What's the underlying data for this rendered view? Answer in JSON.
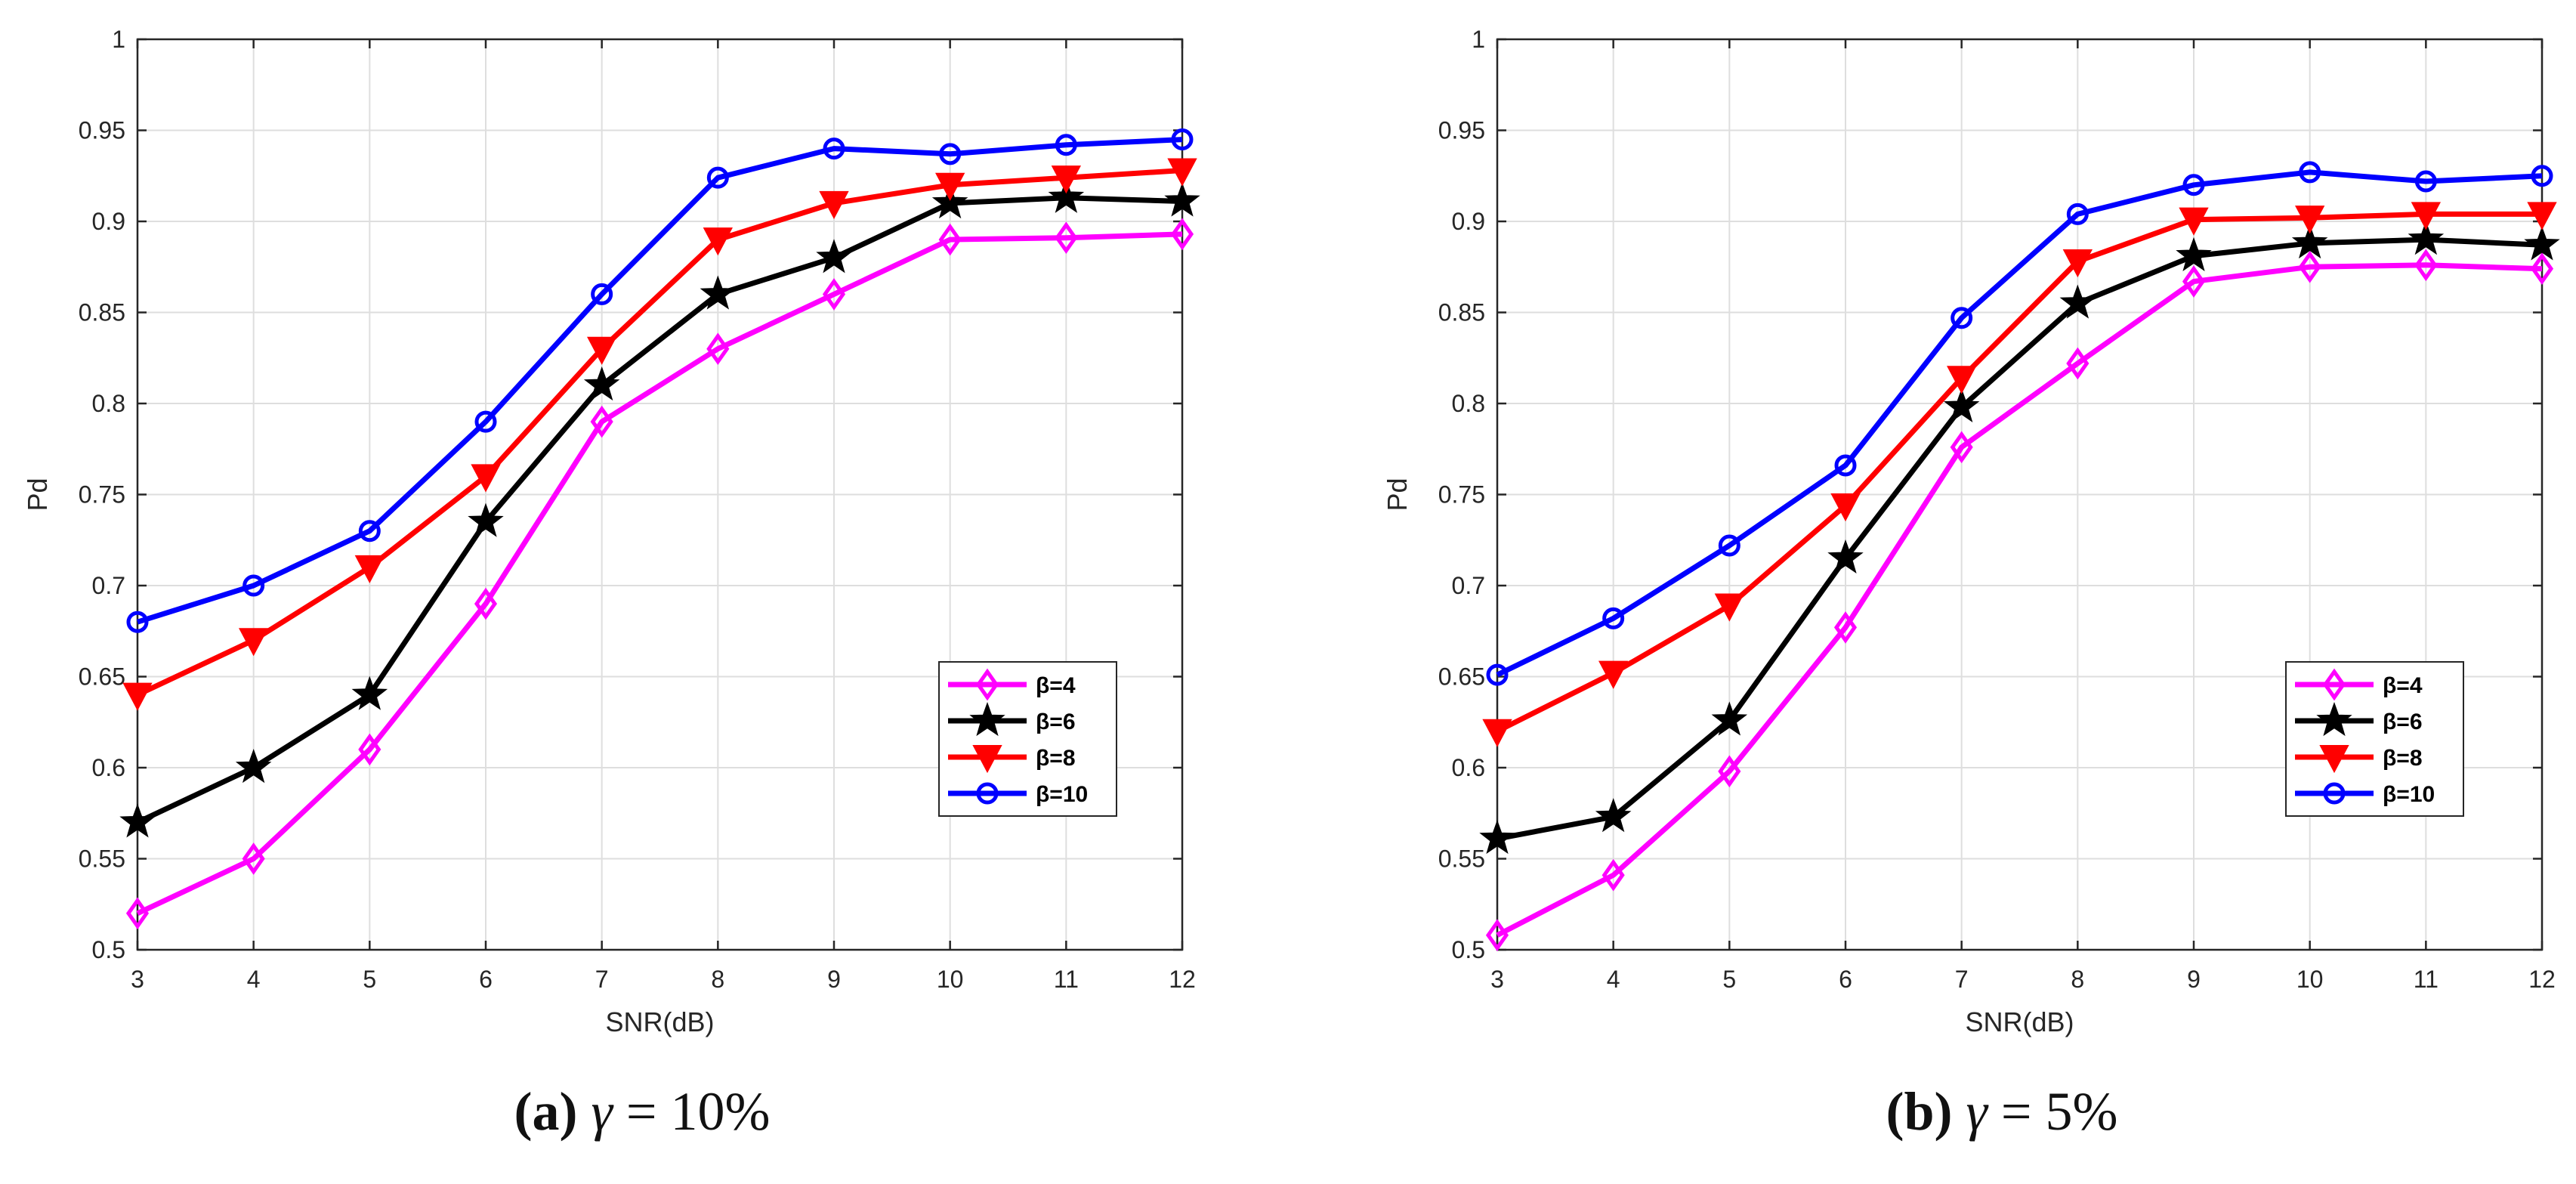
{
  "chart_data": [
    {
      "type": "line",
      "xlabel": "SNR(dB)",
      "ylabel": "Pd",
      "xlim": [
        3,
        12
      ],
      "ylim": [
        0.5,
        1
      ],
      "xticks": [
        3,
        4,
        5,
        6,
        7,
        8,
        9,
        10,
        11,
        12
      ],
      "yticks": [
        0.5,
        0.55,
        0.6,
        0.65,
        0.7,
        0.75,
        0.8,
        0.85,
        0.9,
        0.95,
        1
      ],
      "grid": true,
      "legend_position": "bottom-right",
      "x": [
        3,
        4,
        5,
        6,
        7,
        8,
        9,
        10,
        11,
        12
      ],
      "series": [
        {
          "name": "β=4",
          "color": "#ff00ff",
          "marker": "diamond",
          "values": [
            0.52,
            0.55,
            0.61,
            0.69,
            0.79,
            0.83,
            0.86,
            0.89,
            0.891,
            0.893
          ]
        },
        {
          "name": "β=6",
          "color": "#000000",
          "marker": "star",
          "values": [
            0.57,
            0.6,
            0.64,
            0.735,
            0.81,
            0.86,
            0.88,
            0.91,
            0.913,
            0.911
          ]
        },
        {
          "name": "β=8",
          "color": "#ff0000",
          "marker": "triangle-down",
          "values": [
            0.64,
            0.67,
            0.71,
            0.76,
            0.83,
            0.89,
            0.91,
            0.92,
            0.924,
            0.928
          ]
        },
        {
          "name": "β=10",
          "color": "#0000ff",
          "marker": "circle",
          "values": [
            0.68,
            0.7,
            0.73,
            0.79,
            0.86,
            0.924,
            0.94,
            0.937,
            0.942,
            0.945
          ]
        }
      ]
    },
    {
      "type": "line",
      "xlabel": "SNR(dB)",
      "ylabel": "Pd",
      "xlim": [
        3,
        12
      ],
      "ylim": [
        0.5,
        1
      ],
      "xticks": [
        3,
        4,
        5,
        6,
        7,
        8,
        9,
        10,
        11,
        12
      ],
      "yticks": [
        0.5,
        0.55,
        0.6,
        0.65,
        0.7,
        0.75,
        0.8,
        0.85,
        0.9,
        0.95,
        1
      ],
      "grid": true,
      "legend_position": "bottom-right",
      "x": [
        3,
        4,
        5,
        6,
        7,
        8,
        9,
        10,
        11,
        12
      ],
      "series": [
        {
          "name": "β=4",
          "color": "#ff00ff",
          "marker": "diamond",
          "values": [
            0.508,
            0.541,
            0.598,
            0.677,
            0.776,
            0.822,
            0.867,
            0.875,
            0.876,
            0.874
          ]
        },
        {
          "name": "β=6",
          "color": "#000000",
          "marker": "star",
          "values": [
            0.561,
            0.573,
            0.626,
            0.715,
            0.798,
            0.855,
            0.881,
            0.888,
            0.89,
            0.887
          ]
        },
        {
          "name": "β=8",
          "color": "#ff0000",
          "marker": "triangle-down",
          "values": [
            0.62,
            0.652,
            0.689,
            0.744,
            0.814,
            0.878,
            0.901,
            0.902,
            0.904,
            0.904
          ]
        },
        {
          "name": "β=10",
          "color": "#0000ff",
          "marker": "circle",
          "values": [
            0.651,
            0.682,
            0.722,
            0.766,
            0.847,
            0.904,
            0.92,
            0.927,
            0.922,
            0.925
          ]
        }
      ]
    }
  ],
  "captions": [
    {
      "tag": "(a)",
      "symbol": "γ",
      "text": " = 10%"
    },
    {
      "tag": "(b)",
      "symbol": "γ",
      "text": " = 5%"
    }
  ]
}
